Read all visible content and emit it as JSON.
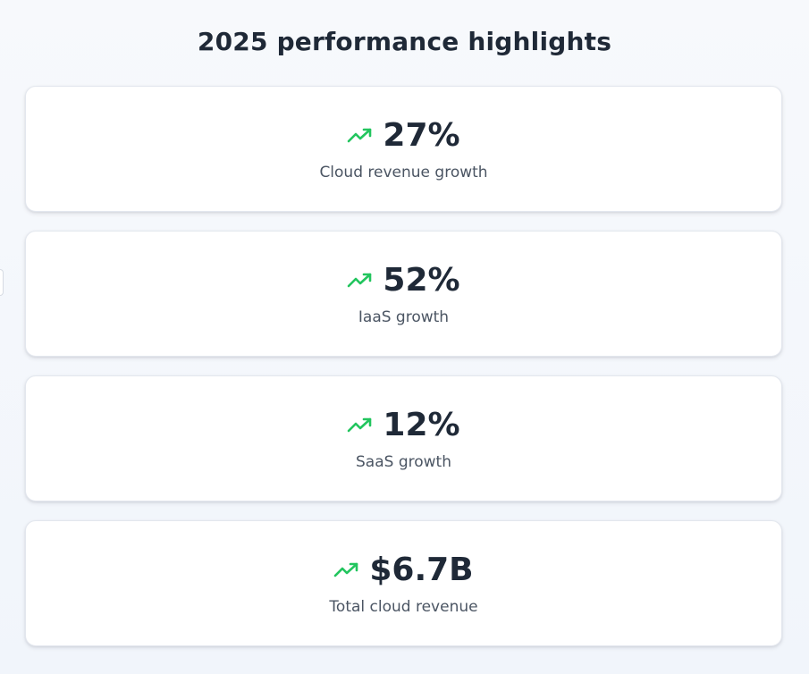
{
  "header": {
    "title": "2025 performance highlights"
  },
  "colors": {
    "trend_up": "#22c55e",
    "text_primary": "#1f2937",
    "text_secondary": "#4b5563"
  },
  "cards": [
    {
      "icon": "trending-up-icon",
      "value": "27%",
      "label": "Cloud revenue growth"
    },
    {
      "icon": "trending-up-icon",
      "value": "52%",
      "label": "IaaS growth"
    },
    {
      "icon": "trending-up-icon",
      "value": "12%",
      "label": "SaaS growth"
    },
    {
      "icon": "trending-up-icon",
      "value": "$6.7B",
      "label": "Total cloud revenue"
    }
  ]
}
